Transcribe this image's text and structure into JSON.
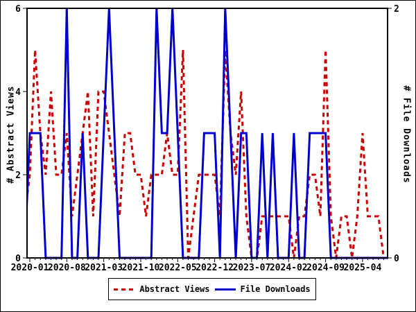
{
  "figure": {
    "background": "#ffffff",
    "border_color": "#000000"
  },
  "axes": {
    "y_left": {
      "label": "# Abstract Views",
      "ticks": [
        0,
        2,
        4,
        6
      ],
      "range": [
        0,
        6
      ]
    },
    "y_right": {
      "label": "# File Downloads",
      "ticks": [
        0,
        2
      ],
      "range": [
        0,
        2
      ]
    },
    "x": {
      "tick_labels": [
        "2020-01",
        "2020-08",
        "2021-03",
        "2021-10",
        "2022-05",
        "2022-12",
        "2023-07",
        "2024-02",
        "2024-09",
        "2025-04"
      ]
    }
  },
  "legend": {
    "entries": [
      {
        "label": "Abstract Views",
        "color": "#cc0000",
        "style": "dashed"
      },
      {
        "label": "File Downloads",
        "color": "#0000cc",
        "style": "solid"
      }
    ]
  },
  "chart_data": {
    "type": "line",
    "title": "",
    "xlabel": "",
    "ylabel_left": "# Abstract Views",
    "ylabel_right": "# File Downloads",
    "ylim_left": [
      0,
      6
    ],
    "ylim_right": [
      0,
      2
    ],
    "grid": false,
    "legend_position": "bottom-center",
    "x_months": [
      "2019-12",
      "2020-01",
      "2020-02",
      "2020-03",
      "2020-04",
      "2020-05",
      "2020-06",
      "2020-07",
      "2020-08",
      "2020-09",
      "2020-10",
      "2020-11",
      "2020-12",
      "2021-01",
      "2021-02",
      "2021-03",
      "2021-04",
      "2021-05",
      "2021-06",
      "2021-07",
      "2021-08",
      "2021-09",
      "2021-10",
      "2021-11",
      "2021-12",
      "2022-01",
      "2022-02",
      "2022-03",
      "2022-04",
      "2022-05",
      "2022-06",
      "2022-07",
      "2022-08",
      "2022-09",
      "2022-10",
      "2022-11",
      "2022-12",
      "2023-01",
      "2023-02",
      "2023-03",
      "2023-04",
      "2023-05",
      "2023-06",
      "2023-07",
      "2023-08",
      "2023-09",
      "2023-10",
      "2023-11",
      "2023-12",
      "2024-01",
      "2024-02",
      "2024-03",
      "2024-04",
      "2024-05",
      "2024-06",
      "2024-07",
      "2024-08",
      "2024-09",
      "2024-10",
      "2024-11",
      "2024-12",
      "2025-01",
      "2025-02",
      "2025-03",
      "2025-04",
      "2025-05",
      "2025-06",
      "2025-07",
      "2025-08",
      "2025-09"
    ],
    "series": [
      {
        "name": "Abstract Views",
        "axis": "left",
        "color": "#cc0000",
        "style": "dashed",
        "values": [
          1,
          2,
          5,
          3,
          2,
          4,
          2,
          2,
          3,
          1,
          2,
          3,
          4,
          1,
          4,
          4,
          3,
          2,
          1,
          3,
          3,
          2,
          2,
          1,
          2,
          2,
          2,
          3,
          2,
          2,
          5,
          0,
          1,
          2,
          2,
          2,
          2,
          1,
          5,
          3,
          2,
          4,
          1,
          0,
          0,
          1,
          1,
          1,
          1,
          1,
          1,
          0,
          1,
          1,
          2,
          2,
          1,
          5,
          1,
          0,
          1,
          1,
          0,
          1,
          3,
          1,
          1,
          1,
          0,
          null
        ]
      },
      {
        "name": "File Downloads",
        "axis": "right",
        "color": "#0000cc",
        "style": "solid",
        "values": [
          0,
          1,
          1,
          1,
          0,
          0,
          0,
          0,
          2,
          0,
          0,
          1,
          0,
          0,
          0,
          1,
          2,
          1,
          0,
          0,
          0,
          0,
          0,
          0,
          0,
          2,
          1,
          1,
          2,
          1,
          0,
          0,
          0,
          0,
          1,
          1,
          1,
          0,
          2,
          1,
          0,
          1,
          1,
          0,
          0,
          1,
          0,
          1,
          0,
          0,
          0,
          1,
          0,
          0,
          1,
          1,
          1,
          1,
          0,
          0,
          0,
          0,
          0,
          0,
          0,
          0,
          0,
          0,
          0,
          0
        ]
      }
    ]
  }
}
